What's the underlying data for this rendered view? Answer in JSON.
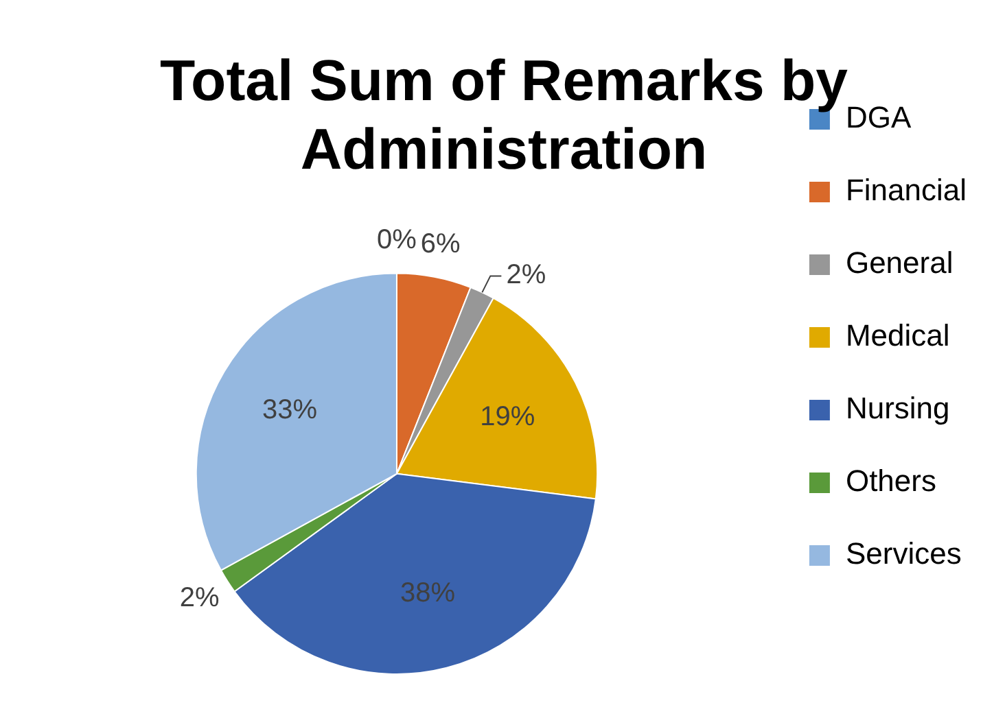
{
  "chart_data": {
    "type": "pie",
    "title": "Total Sum of Remarks by Administration",
    "categories": [
      "DGA",
      "Financial",
      "General",
      "Medical",
      "Nursing",
      "Others",
      "Services"
    ],
    "values": [
      0,
      6,
      2,
      19,
      38,
      2,
      33
    ],
    "value_labels": [
      "0%",
      "6%",
      "2%",
      "19%",
      "38%",
      "2%",
      "33%"
    ],
    "colors": [
      "#4a86c5",
      "#d9692a",
      "#979797",
      "#e0aa00",
      "#3a62ad",
      "#5a9a3a",
      "#95b8e0"
    ],
    "legend": "right"
  }
}
